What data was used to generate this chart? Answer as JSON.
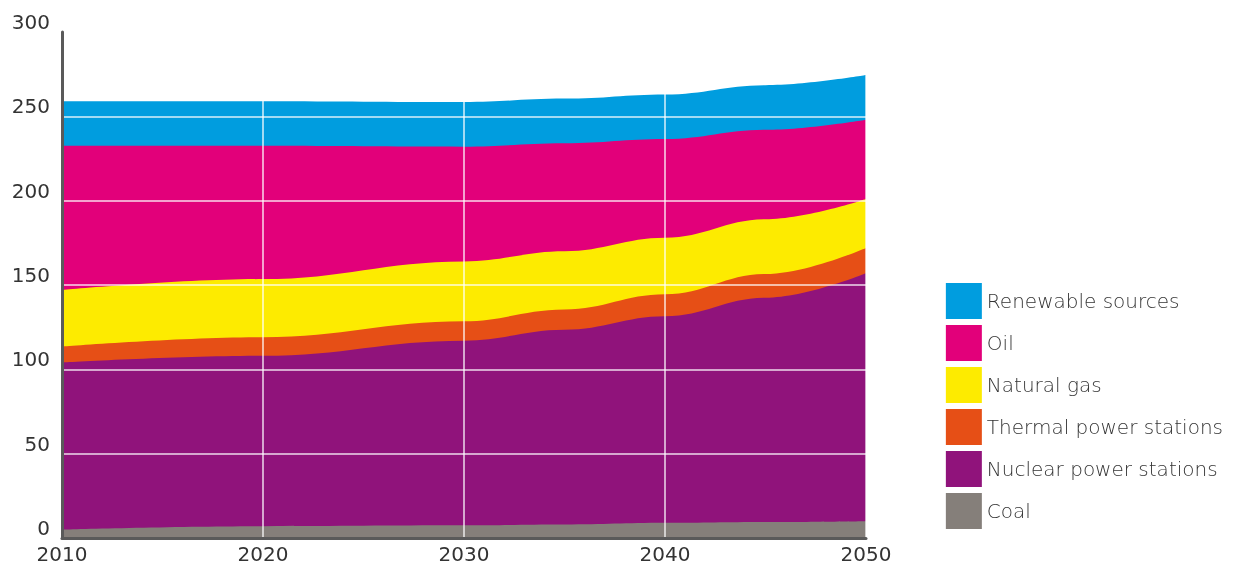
{
  "chart_data": {
    "type": "area",
    "stacked": true,
    "x": [
      2010,
      2020,
      2030,
      2035,
      2040,
      2045,
      2050
    ],
    "xlim": [
      2010,
      2050
    ],
    "xticks": [
      2010,
      2020,
      2030,
      2040,
      2050
    ],
    "ylim": [
      0,
      300
    ],
    "yticks": [
      0,
      50,
      100,
      150,
      200,
      250,
      300
    ],
    "grid": true,
    "legend": "right",
    "series": [
      {
        "name": "Coal",
        "color": "#857f7a",
        "values": [
          5,
          7,
          7.5,
          8,
          9,
          9.5,
          10
        ]
      },
      {
        "name": "Nuclear power stations",
        "color": "#90137b",
        "values": [
          99,
          101,
          109.5,
          115.5,
          122.5,
          133,
          147
        ]
      },
      {
        "name": "Thermal power stations",
        "color": "#e64f16",
        "values": [
          9.5,
          11,
          11.5,
          12,
          13,
          14,
          15
        ]
      },
      {
        "name": "Natural gas",
        "color": "#fdeb00",
        "values": [
          33.5,
          34.5,
          35.5,
          34.5,
          33.5,
          32.5,
          29
        ]
      },
      {
        "name": "Oil",
        "color": "#e2007a",
        "values": [
          85.5,
          79,
          68,
          64,
          58.5,
          53,
          47
        ]
      },
      {
        "name": "Renewable sources",
        "color": "#009ddf",
        "values": [
          26.5,
          26.5,
          26.5,
          26.5,
          26.5,
          26.5,
          26.5
        ]
      }
    ]
  }
}
